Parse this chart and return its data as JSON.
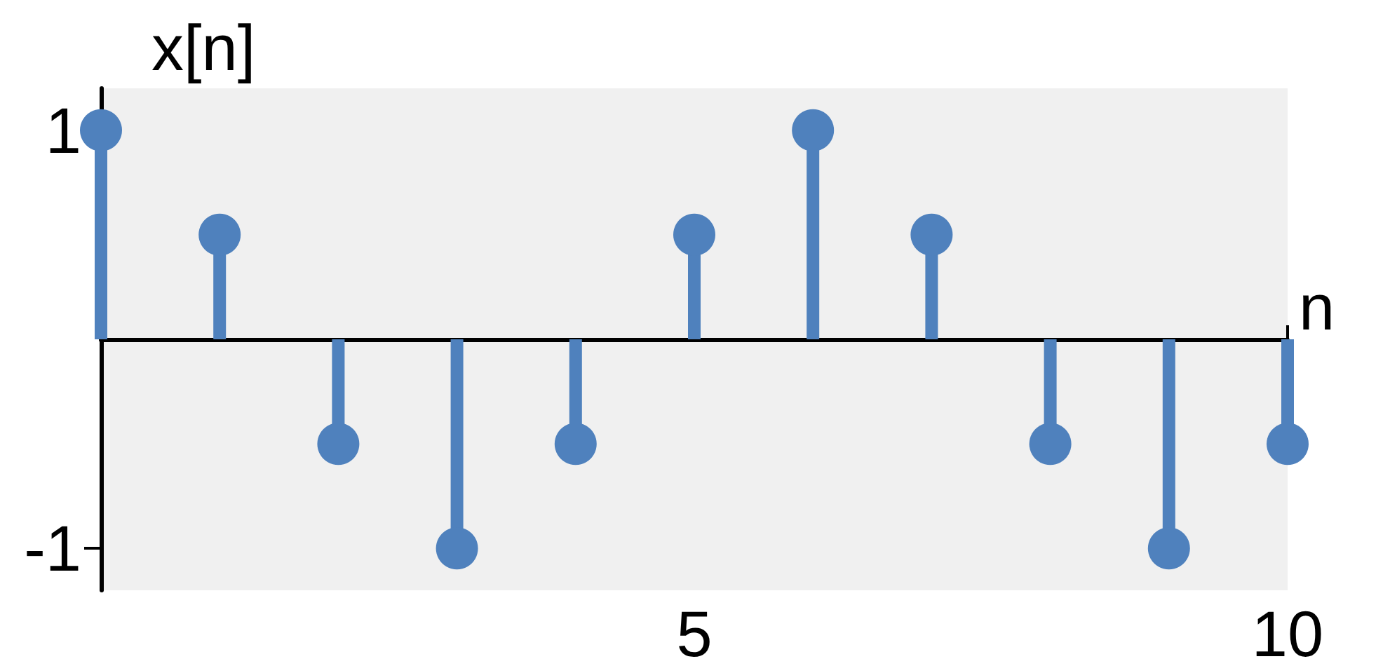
{
  "chart_data": {
    "type": "lollipop",
    "xlabel": "n",
    "ylabel": "x[n]",
    "x": [
      0,
      1,
      2,
      3,
      4,
      5,
      6,
      7,
      8,
      9,
      10
    ],
    "series": [
      {
        "color": "#4f81bd",
        "values": [
          1,
          0.5,
          -0.5,
          -1,
          -0.5,
          0.5,
          1,
          0.5,
          -0.5,
          -1,
          -0.5
        ]
      }
    ],
    "xlim": [
      0,
      10
    ],
    "xticks": [
      5,
      10
    ],
    "ylim": [
      -1.2,
      1.2
    ],
    "yticks": [
      -1,
      1
    ],
    "grid": false,
    "marker": "circle"
  }
}
